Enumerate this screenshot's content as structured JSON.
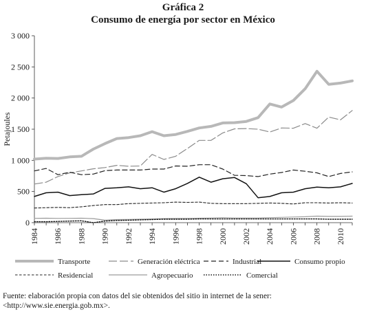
{
  "header": {
    "title": "Gráfica 2",
    "subtitle": "Consumo de energía por sector en México"
  },
  "source_note": "Fuente: elaboración propia con datos del sie obtenidos del sitio in internet de la sener: <http://www.sie.energia.gob.mx>.",
  "chart_data": {
    "type": "line",
    "title": "Consumo de energía por sector en México",
    "ylabel": "Petajoules",
    "xlabel": "",
    "ylim": [
      0,
      3000
    ],
    "yticks": [
      0,
      500,
      1000,
      1500,
      2000,
      2500,
      3000
    ],
    "ytick_labels": [
      "0",
      "500",
      "1 000",
      "1 500",
      "2 000",
      "2 500",
      "3 000"
    ],
    "xlim": [
      1984,
      2011
    ],
    "xticks": [
      1984,
      1986,
      1988,
      1990,
      1992,
      1994,
      1996,
      1998,
      2000,
      2002,
      2004,
      2006,
      2008,
      2010
    ],
    "x": [
      1984,
      1985,
      1986,
      1987,
      1988,
      1989,
      1990,
      1991,
      1992,
      1993,
      1994,
      1995,
      1996,
      1997,
      1998,
      1999,
      2000,
      2001,
      2002,
      2003,
      2004,
      2005,
      2006,
      2007,
      2008,
      2009,
      2010,
      2011
    ],
    "grid": false,
    "legend_position": "bottom",
    "series": [
      {
        "name": "Transporte",
        "style": "thick-gray",
        "values": [
          1020,
          1035,
          1030,
          1055,
          1065,
          1180,
          1270,
          1350,
          1365,
          1395,
          1460,
          1395,
          1415,
          1465,
          1520,
          1545,
          1600,
          1605,
          1625,
          1685,
          1905,
          1855,
          1960,
          2150,
          2430,
          2220,
          2240,
          2275
        ]
      },
      {
        "name": "Generación eléctrica",
        "style": "longdash-gray",
        "values": [
          620,
          650,
          740,
          800,
          830,
          865,
          885,
          920,
          905,
          910,
          1095,
          1015,
          1065,
          1190,
          1320,
          1320,
          1440,
          1505,
          1510,
          1500,
          1455,
          1520,
          1515,
          1590,
          1515,
          1695,
          1650,
          1800
        ]
      },
      {
        "name": "Industrial",
        "style": "dash-black",
        "values": [
          830,
          870,
          770,
          810,
          770,
          780,
          835,
          845,
          845,
          845,
          860,
          860,
          910,
          905,
          930,
          930,
          860,
          760,
          755,
          740,
          780,
          805,
          845,
          825,
          800,
          740,
          790,
          815
        ]
      },
      {
        "name": "Consumo propio",
        "style": "solid-black",
        "values": [
          420,
          480,
          490,
          435,
          450,
          460,
          550,
          560,
          575,
          545,
          560,
          490,
          545,
          630,
          730,
          650,
          705,
          725,
          625,
          400,
          420,
          480,
          490,
          545,
          570,
          560,
          575,
          630
        ]
      },
      {
        "name": "Residencial",
        "style": "shortdash-black",
        "values": [
          235,
          240,
          245,
          240,
          255,
          275,
          290,
          290,
          305,
          310,
          315,
          320,
          330,
          325,
          330,
          310,
          305,
          305,
          305,
          310,
          315,
          310,
          300,
          320,
          320,
          315,
          320,
          315
        ]
      },
      {
        "name": "Agropecuario",
        "style": "solid-gray",
        "values": [
          70,
          72,
          68,
          70,
          72,
          65,
          40,
          50,
          52,
          55,
          60,
          65,
          68,
          70,
          72,
          75,
          80,
          75,
          75,
          75,
          80,
          85,
          90,
          95,
          105,
          100,
          100,
          105
        ]
      },
      {
        "name": "Comercial",
        "style": "dotted-black",
        "values": [
          15,
          15,
          20,
          25,
          30,
          0,
          25,
          35,
          40,
          45,
          50,
          55,
          55,
          55,
          60,
          60,
          60,
          60,
          60,
          60,
          60,
          60,
          60,
          60,
          60,
          55,
          55,
          55
        ]
      }
    ]
  }
}
